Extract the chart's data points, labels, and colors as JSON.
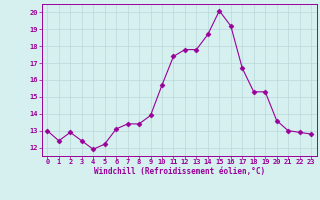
{
  "x": [
    0,
    1,
    2,
    3,
    4,
    5,
    6,
    7,
    8,
    9,
    10,
    11,
    12,
    13,
    14,
    15,
    16,
    17,
    18,
    19,
    20,
    21,
    22,
    23
  ],
  "y": [
    13.0,
    12.4,
    12.9,
    12.4,
    11.9,
    12.2,
    13.1,
    13.4,
    13.4,
    13.9,
    15.7,
    17.4,
    17.8,
    17.8,
    18.7,
    20.1,
    19.2,
    16.7,
    15.3,
    15.3,
    13.6,
    13.0,
    12.9,
    12.8
  ],
  "xlabel": "Windchill (Refroidissement éolien,°C)",
  "xlim": [
    -0.5,
    23.5
  ],
  "ylim": [
    11.5,
    20.5
  ],
  "yticks": [
    12,
    13,
    14,
    15,
    16,
    17,
    18,
    19,
    20
  ],
  "xticks": [
    0,
    1,
    2,
    3,
    4,
    5,
    6,
    7,
    8,
    9,
    10,
    11,
    12,
    13,
    14,
    15,
    16,
    17,
    18,
    19,
    20,
    21,
    22,
    23
  ],
  "line_color": "#990099",
  "marker": "D",
  "marker_size": 2.5,
  "bg_color": "#d6f0f0",
  "grid_color": "#b8d8d8",
  "label_color": "#990099",
  "tick_color": "#990099",
  "font_family": "monospace",
  "tick_fontsize": 5.0,
  "xlabel_fontsize": 5.5
}
